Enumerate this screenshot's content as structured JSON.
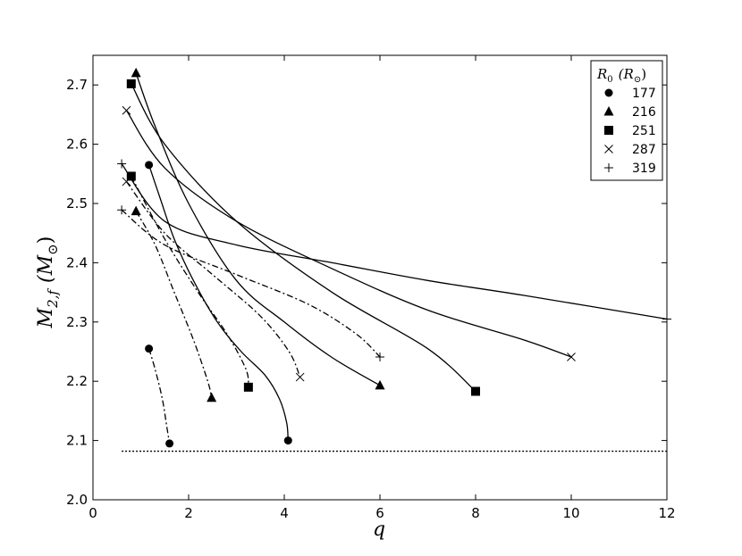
{
  "chart_data": {
    "type": "line",
    "xlabel": "q",
    "ylabel": "M",
    "ylabel_sub": "2,f",
    "ylabel_unit": "(M",
    "ylabel_unit_sub": "⊙",
    "ylabel_unit_close": ")",
    "xlim": [
      0,
      12
    ],
    "ylim": [
      2.0,
      2.75
    ],
    "xticks": [
      "0",
      "2",
      "4",
      "6",
      "8",
      "10",
      "12"
    ],
    "yticks": [
      "2.0",
      "2.1",
      "2.2",
      "2.3",
      "2.4",
      "2.5",
      "2.6",
      "2.7"
    ],
    "grid": false,
    "legend": {
      "title_main": "R",
      "title_sub": "0",
      "title_unit": "(R",
      "title_unit_sub": "⊙",
      "title_unit_close": ")",
      "placement": "top-right",
      "entries": [
        {
          "label": "177",
          "marker": "circle"
        },
        {
          "label": "216",
          "marker": "triangle"
        },
        {
          "label": "251",
          "marker": "square"
        },
        {
          "label": "287",
          "marker": "x"
        },
        {
          "label": "319",
          "marker": "plus"
        }
      ]
    },
    "series": [
      {
        "style": "solid",
        "marker_end": "circle",
        "x": [
          1.17,
          1.4,
          1.7,
          2.1,
          2.6,
          3.1,
          3.6,
          3.9,
          4.05,
          4.08
        ],
        "y": [
          2.565,
          2.51,
          2.44,
          2.37,
          2.3,
          2.25,
          2.21,
          2.17,
          2.13,
          2.1
        ]
      },
      {
        "style": "dashdot",
        "marker_end": "circle",
        "x": [
          1.17,
          1.3,
          1.45,
          1.55,
          1.6
        ],
        "y": [
          2.255,
          2.22,
          2.17,
          2.12,
          2.095
        ]
      },
      {
        "style": "solid",
        "marker_end": "triangle",
        "x": [
          0.9,
          1.3,
          2.0,
          3.0,
          4.0,
          5.0,
          6.0
        ],
        "y": [
          2.72,
          2.63,
          2.5,
          2.37,
          2.3,
          2.24,
          2.193
        ]
      },
      {
        "style": "dashdot",
        "marker_end": "triangle",
        "x": [
          0.9,
          1.3,
          1.7,
          2.1,
          2.4,
          2.48
        ],
        "y": [
          2.487,
          2.43,
          2.35,
          2.27,
          2.2,
          2.172
        ]
      },
      {
        "style": "solid",
        "marker_end": "square",
        "x": [
          0.8,
          1.5,
          3.0,
          5.0,
          7.0,
          8.0
        ],
        "y": [
          2.702,
          2.6,
          2.47,
          2.35,
          2.255,
          2.183
        ]
      },
      {
        "style": "dashdot",
        "marker_end": "square",
        "x": [
          0.8,
          1.5,
          2.2,
          2.8,
          3.2,
          3.25
        ],
        "y": [
          2.546,
          2.44,
          2.35,
          2.28,
          2.22,
          2.19
        ]
      },
      {
        "style": "solid",
        "marker_end": "x",
        "x": [
          0.7,
          1.5,
          3.0,
          5.0,
          7.0,
          9.0,
          10.0
        ],
        "y": [
          2.657,
          2.56,
          2.47,
          2.39,
          2.32,
          2.27,
          2.241
        ]
      },
      {
        "style": "dashdot",
        "marker_end": "x",
        "x": [
          0.7,
          1.5,
          2.5,
          3.5,
          4.1,
          4.33
        ],
        "y": [
          2.537,
          2.45,
          2.38,
          2.31,
          2.25,
          2.207
        ]
      },
      {
        "style": "solid",
        "marker_end": "plus",
        "x": [
          0.6,
          1.5,
          3.0,
          5.0,
          7.0,
          9.0,
          12.0
        ],
        "y": [
          2.567,
          2.47,
          2.43,
          2.4,
          2.37,
          2.345,
          2.305
        ]
      },
      {
        "style": "dashdot",
        "marker_end": "plus",
        "x": [
          0.6,
          1.5,
          3.0,
          4.5,
          5.5,
          6.0
        ],
        "y": [
          2.489,
          2.43,
          2.38,
          2.33,
          2.28,
          2.241
        ]
      },
      {
        "style": "dotted",
        "marker_end": "none",
        "x": [
          0.6,
          12.0
        ],
        "y": [
          2.082,
          2.082
        ]
      }
    ]
  }
}
